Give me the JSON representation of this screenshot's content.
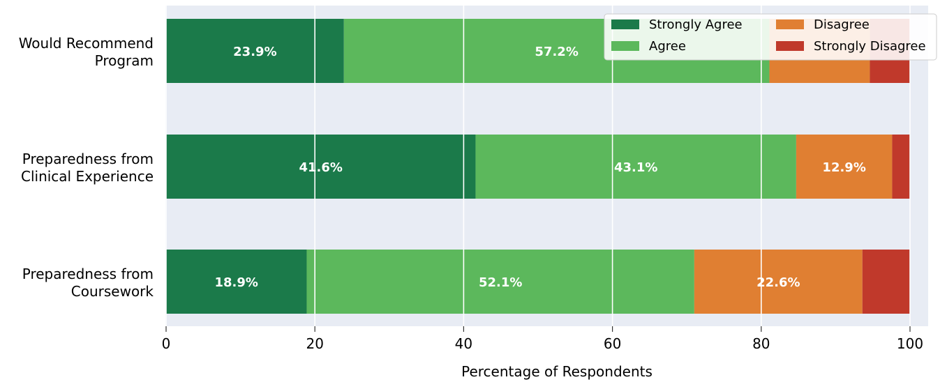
{
  "chart_data": {
    "type": "bar",
    "orientation": "horizontal",
    "stacked": true,
    "categories": [
      "Would Recommend Program",
      "Preparedness from Clinical Experience",
      "Preparedness from Coursework"
    ],
    "category_lines": [
      [
        "Would Recommend",
        "Program"
      ],
      [
        "Preparedness from",
        "Clinical Experience"
      ],
      [
        "Preparedness from",
        "Coursework"
      ]
    ],
    "series": [
      {
        "name": "Strongly Agree",
        "color": "#1b7a4a",
        "values": [
          23.9,
          41.6,
          18.9
        ],
        "labels": [
          "23.9%",
          "41.6%",
          "18.9%"
        ]
      },
      {
        "name": "Agree",
        "color": "#5cb85c",
        "values": [
          57.2,
          43.1,
          52.1
        ],
        "labels": [
          "57.2%",
          "43.1%",
          "52.1%"
        ]
      },
      {
        "name": "Disagree",
        "color": "#e07f32",
        "values": [
          13.5,
          12.9,
          22.6
        ],
        "labels": [
          "",
          "12.9%",
          "22.6%"
        ]
      },
      {
        "name": "Strongly Disagree",
        "color": "#c0392b",
        "values": [
          5.4,
          2.4,
          6.4
        ],
        "labels": [
          "",
          "",
          ""
        ]
      }
    ],
    "xlabel": "Percentage of Respondents",
    "ylabel": "",
    "title": "",
    "xlim": [
      0,
      100
    ],
    "xticks": [
      0,
      20,
      40,
      60,
      80,
      100
    ],
    "xtick_labels": [
      "0",
      "20",
      "40",
      "60",
      "80",
      "100"
    ],
    "grid": "x",
    "legend_position": "top-right",
    "legend_columns": 2,
    "plot_background": "#e8ecf4"
  }
}
